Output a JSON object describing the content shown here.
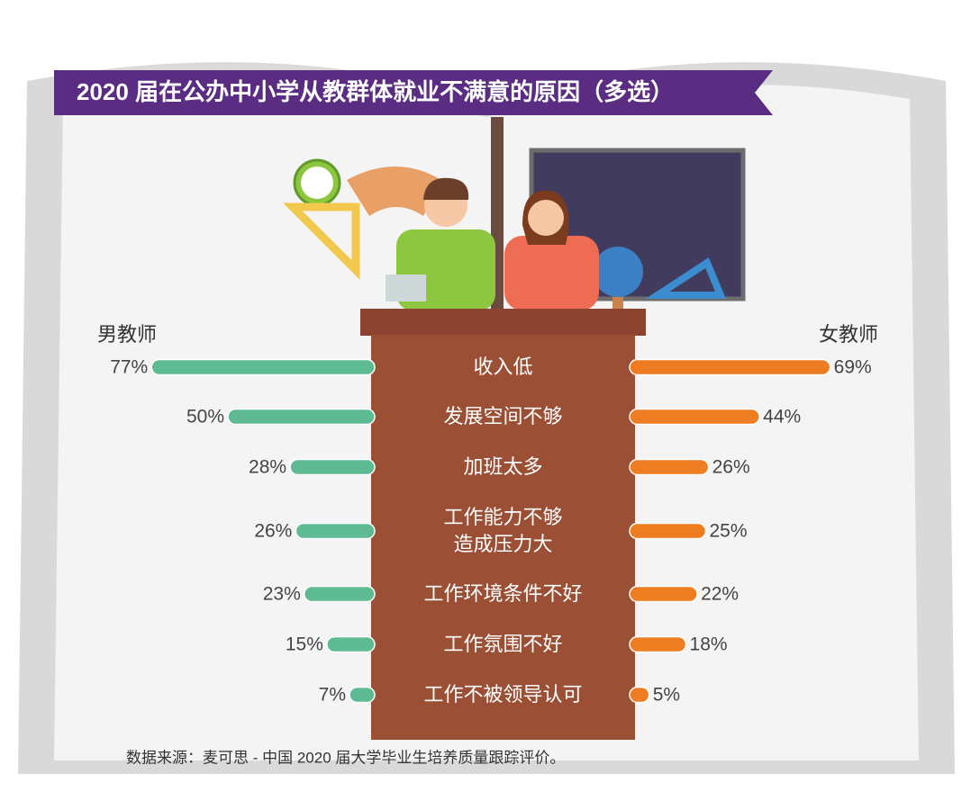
{
  "chart_data": {
    "type": "butterfly-bar",
    "title": "2020 届在公办中小学从教群体就业不满意的原因（多选）",
    "categories": [
      "收入低",
      "发展空间不够",
      "加班太多",
      "工作能力不够\n造成压力大",
      "工作环境条件不好",
      "工作氛围不好",
      "工作不被领导认可"
    ],
    "series": [
      {
        "name": "男教师",
        "color": "#5dba93",
        "values": [
          77,
          50,
          28,
          26,
          23,
          15,
          7
        ],
        "value_labels": [
          "77%",
          "50%",
          "28%",
          "26%",
          "23%",
          "15%",
          "7%"
        ]
      },
      {
        "name": "女教师",
        "color": "#ee7d22",
        "values": [
          69,
          44,
          26,
          25,
          22,
          18,
          5
        ],
        "value_labels": [
          "69%",
          "44%",
          "26%",
          "25%",
          "22%",
          "18%",
          "5%"
        ]
      }
    ],
    "source": "数据来源：麦可思 - 中国 2020 届大学毕业生培养质量跟踪评价。"
  }
}
